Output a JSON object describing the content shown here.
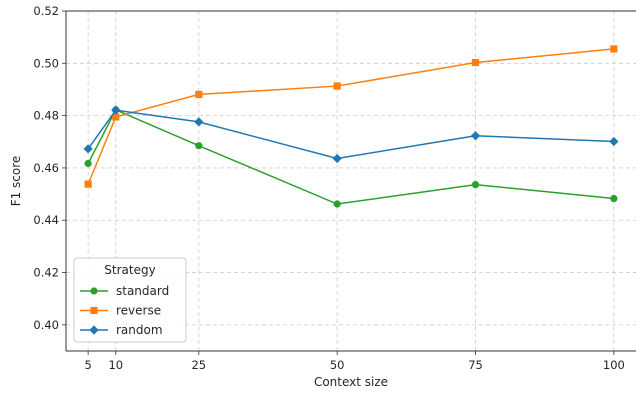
{
  "chart_data": {
    "type": "line",
    "xlabel": "Context size",
    "ylabel": "F1 score",
    "x": [
      5,
      10,
      25,
      50,
      75,
      100
    ],
    "x_ticks": [
      "5",
      "10",
      "25",
      "50",
      "75",
      "100"
    ],
    "y_ticks": [
      "0.40",
      "0.42",
      "0.44",
      "0.46",
      "0.48",
      "0.50",
      "0.52"
    ],
    "xlim": [
      1,
      104
    ],
    "ylim": [
      0.39,
      0.52
    ],
    "grid": true,
    "legend": {
      "title": "Strategy",
      "placement": "lower-left"
    },
    "series": [
      {
        "name": "standard",
        "color": "#2ca02c",
        "marker": "circle",
        "values": [
          0.4617,
          0.4822,
          0.4685,
          0.4462,
          0.4536,
          0.4483
        ]
      },
      {
        "name": "reverse",
        "color": "#ff7f0e",
        "marker": "square",
        "values": [
          0.4538,
          0.4795,
          0.4881,
          0.4913,
          0.5003,
          0.5055
        ]
      },
      {
        "name": "random",
        "color": "#1f77b4",
        "marker": "diamond",
        "values": [
          0.4673,
          0.4821,
          0.4776,
          0.4636,
          0.4723,
          0.4701
        ]
      }
    ]
  }
}
